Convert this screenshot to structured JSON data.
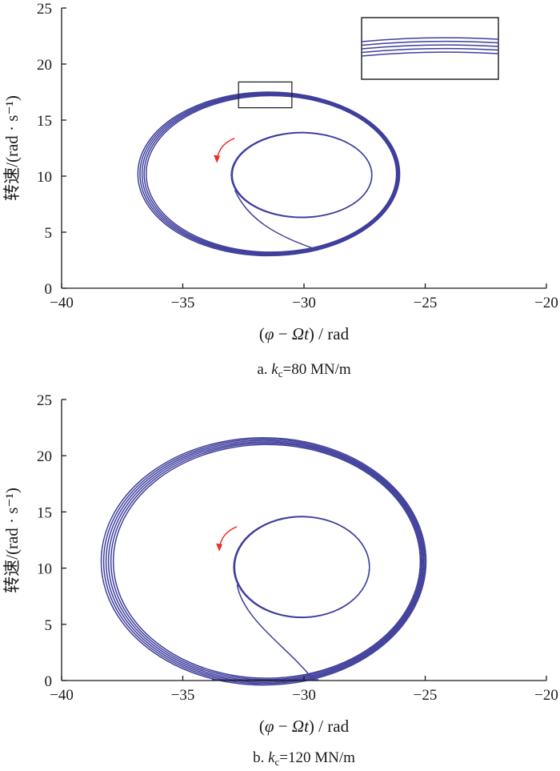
{
  "chart_data": [
    {
      "type": "line",
      "panel": "a",
      "caption_prefix": "a. ",
      "caption_k": "k",
      "caption_sub": "c",
      "caption_value": "=80 MN/m",
      "xlabel_parts": [
        "(",
        "φ",
        " − ",
        "Ωt",
        ") / rad"
      ],
      "ylabel": "转速/(rad · s⁻¹)",
      "xlim": [
        -40,
        -20
      ],
      "ylim": [
        0,
        25
      ],
      "xticks": [
        "−40",
        "−35",
        "−30",
        "−25",
        "−20"
      ],
      "yticks": [
        "0",
        "5",
        "10",
        "15",
        "20",
        "25"
      ],
      "outer_orbit": {
        "center": [
          -31.4,
          10.2
        ],
        "radii": [
          5.4,
          7.3
        ],
        "loops": 5
      },
      "inner_orbit": {
        "center": [
          -30.1,
          10.1
        ],
        "radii": [
          2.9,
          3.8
        ]
      },
      "transient_start": [
        -29.4,
        3.4
      ],
      "arrow_color": "#e8312a",
      "curve_color": "#3f3f9c",
      "inset": {
        "shows_zoom_of": [
          -32.7,
          -30.5,
          16.1,
          18.4
        ]
      }
    },
    {
      "type": "line",
      "panel": "b",
      "caption_prefix": "b. ",
      "caption_k": "k",
      "caption_sub": "c",
      "caption_value": "=120 MN/m",
      "xlabel_parts": [
        "(",
        "φ",
        " − ",
        "Ωt",
        ") / rad"
      ],
      "ylabel": "转速/(rad · s⁻¹)",
      "xlim": [
        -40,
        -20
      ],
      "ylim": [
        0,
        25
      ],
      "xticks": [
        "−40",
        "−35",
        "−30",
        "−25",
        "−20"
      ],
      "yticks": [
        "0",
        "5",
        "10",
        "15",
        "20",
        "25"
      ],
      "outer_orbit": {
        "center": [
          -31.6,
          10.6
        ],
        "radii": [
          6.7,
          11.0
        ],
        "loops": 6
      },
      "inner_orbit": {
        "center": [
          -30.1,
          10.1
        ],
        "radii": [
          2.8,
          4.5
        ]
      },
      "transient_start": [
        -29.6,
        0.0
      ],
      "arrow_color": "#e8312a",
      "curve_color": "#3f3f9c"
    }
  ]
}
